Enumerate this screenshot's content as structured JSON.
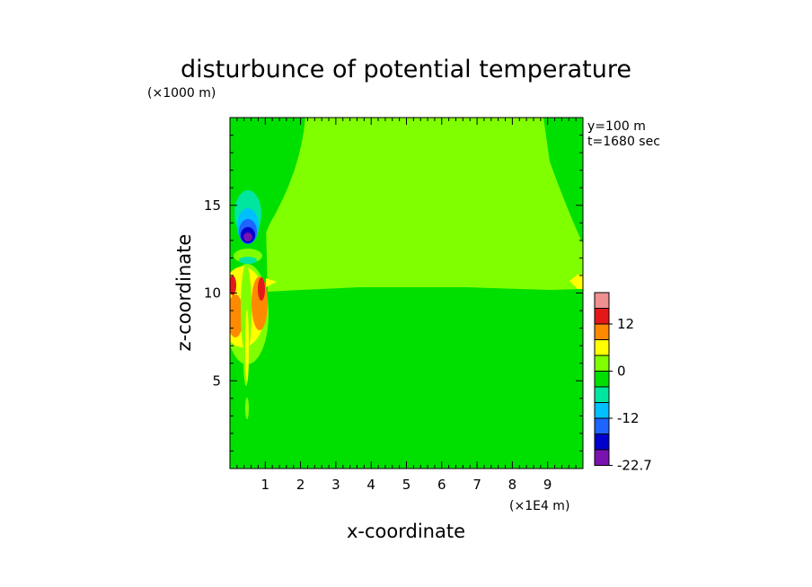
{
  "chart_data": {
    "type": "heatmap",
    "title": "disturbunce of potential temperature",
    "xlabel": "x-coordinate",
    "ylabel": "z-coordinate",
    "x_unit": "(×1E4 m)",
    "y_unit": "(×1000 m)",
    "annotations": [
      "y=100 m",
      "t=1680 sec"
    ],
    "xlim": [
      0,
      10
    ],
    "ylim": [
      0,
      20
    ],
    "x_ticks": [
      "1",
      "2",
      "3",
      "4",
      "5",
      "6",
      "7",
      "8",
      "9"
    ],
    "y_ticks": [
      "5",
      "10",
      "15"
    ],
    "grid": false,
    "colorbar": {
      "labels": [
        "12",
        "0",
        "-12",
        "-22.7"
      ],
      "levels": 10,
      "colors": [
        "#ef8f8f",
        "#e41818",
        "#ff8a00",
        "#ffff00",
        "#80ff00",
        "#00e000",
        "#00e6a0",
        "#00bfff",
        "#1e64ff",
        "#0000cd",
        "#7a12b0"
      ]
    }
  }
}
